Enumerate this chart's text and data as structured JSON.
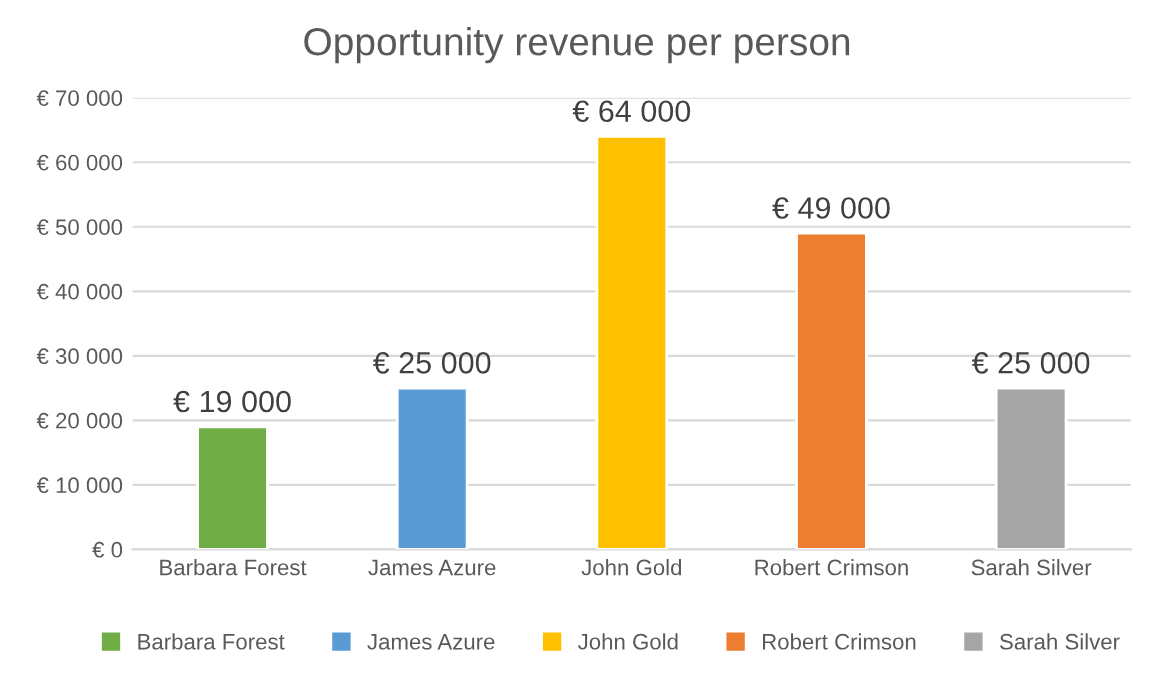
{
  "chart_data": {
    "type": "bar",
    "title": "Opportunity revenue per person",
    "categories": [
      "Barbara Forest",
      "James Azure",
      "John Gold",
      "Robert Crimson",
      "Sarah Silver"
    ],
    "series": [
      {
        "name": "Barbara Forest",
        "color": "#70ad47",
        "values": [
          19000,
          null,
          null,
          null,
          null
        ],
        "value_labels": [
          "€ 19 000",
          null,
          null,
          null,
          null
        ]
      },
      {
        "name": "James Azure",
        "color": "#5b9bd5",
        "values": [
          null,
          25000,
          null,
          null,
          null
        ],
        "value_labels": [
          null,
          "€ 25 000",
          null,
          null,
          null
        ]
      },
      {
        "name": "John Gold",
        "color": "#ffc000",
        "values": [
          null,
          null,
          64000,
          null,
          null
        ],
        "value_labels": [
          null,
          null,
          "€ 64 000",
          null,
          null
        ]
      },
      {
        "name": "Robert Crimson",
        "color": "#ed7d31",
        "values": [
          null,
          null,
          null,
          49000,
          null
        ],
        "value_labels": [
          null,
          null,
          null,
          "€ 49 000",
          null
        ]
      },
      {
        "name": "Sarah Silver",
        "color": "#a5a5a5",
        "values": [
          null,
          null,
          null,
          null,
          25000
        ],
        "value_labels": [
          null,
          null,
          null,
          null,
          "€ 25 000"
        ]
      }
    ],
    "ylim": [
      0,
      70000
    ],
    "yticks": [
      {
        "value": 0,
        "label": "€ 0"
      },
      {
        "value": 10000,
        "label": "€ 10 000"
      },
      {
        "value": 20000,
        "label": "€ 20 000"
      },
      {
        "value": 30000,
        "label": "€ 30 000"
      },
      {
        "value": 40000,
        "label": "€ 40 000"
      },
      {
        "value": 50000,
        "label": "€ 50 000"
      },
      {
        "value": 60000,
        "label": "€ 60 000"
      },
      {
        "value": 70000,
        "label": "€ 70 000"
      }
    ],
    "grid": "y",
    "legend": "bottom"
  }
}
